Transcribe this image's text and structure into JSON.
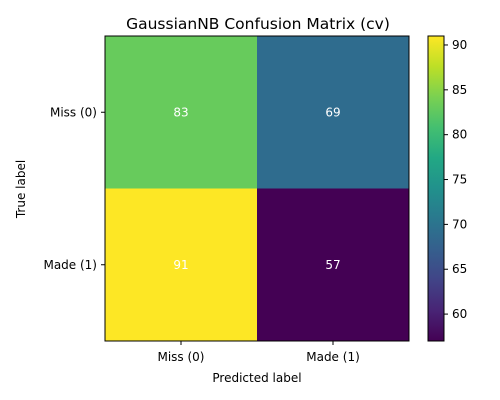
{
  "chart_data": {
    "type": "heatmap",
    "title": "GaussianNB Confusion Matrix (cv)",
    "xlabel": "Predicted label",
    "ylabel": "True label",
    "x_categories": [
      "Miss (0)",
      "Made (1)"
    ],
    "y_categories": [
      "Miss (0)",
      "Made (1)"
    ],
    "values": [
      [
        83,
        69
      ],
      [
        91,
        57
      ]
    ],
    "value_labels": [
      [
        "83",
        "69"
      ],
      [
        "91",
        "57"
      ]
    ],
    "colormap": "viridis",
    "colorbar": {
      "range": [
        57,
        91
      ],
      "ticks": [
        60,
        65,
        70,
        75,
        80,
        85,
        90
      ],
      "tick_labels": [
        "60",
        "65",
        "70",
        "75",
        "80",
        "85",
        "90"
      ]
    },
    "grid": false
  }
}
